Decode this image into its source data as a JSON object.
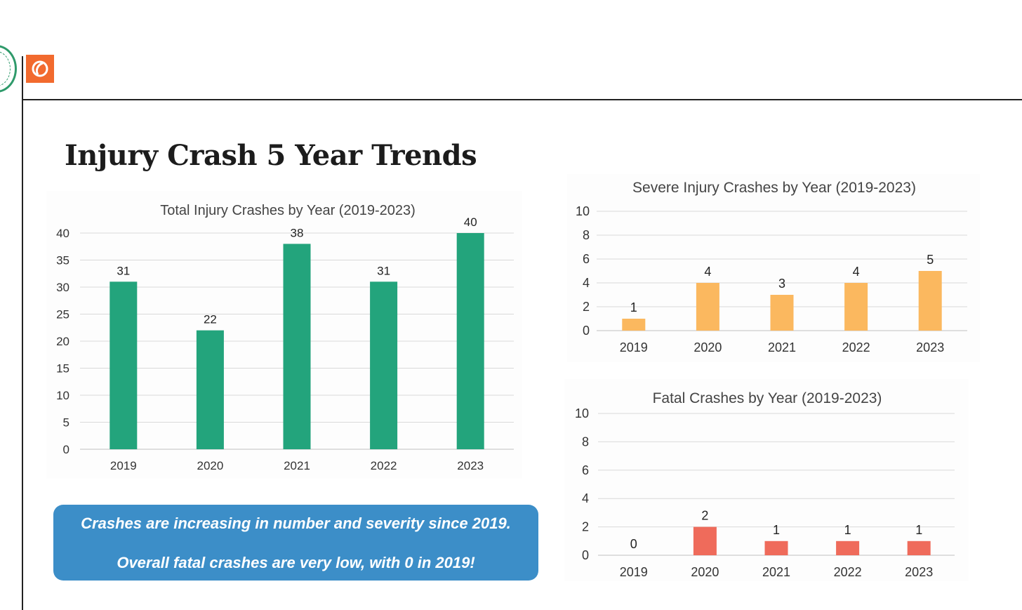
{
  "page": {
    "title": "Injury Crash 5 Year Trends"
  },
  "callout": {
    "line1": "Crashes are increasing in number and severity since 2019.",
    "line2": "Overall fatal crashes are very low, with 0 in 2019!"
  },
  "colors": {
    "total_bar": "#23a47c",
    "severe_bar": "#fbb85f",
    "fatal_bar": "#ef6b5b",
    "callout_bg": "#3c8ec8",
    "badge": "#f26a2e",
    "grid": "#d9d9d9"
  },
  "chart_data": [
    {
      "type": "bar",
      "title": "Total Injury Crashes by Year (2019-2023)",
      "categories": [
        "2019",
        "2020",
        "2021",
        "2022",
        "2023"
      ],
      "values": [
        31,
        22,
        38,
        31,
        40
      ],
      "data_labels": [
        "31",
        "22",
        "38",
        "31",
        "40"
      ],
      "yticks": [
        0,
        5,
        10,
        15,
        20,
        25,
        30,
        35,
        40
      ],
      "ylim": [
        0,
        40
      ],
      "grid": true,
      "legend": "none",
      "color": "#23a47c"
    },
    {
      "type": "bar",
      "title": "Severe Injury Crashes by Year (2019-2023)",
      "categories": [
        "2019",
        "2020",
        "2021",
        "2022",
        "2023"
      ],
      "values": [
        1,
        4,
        3,
        4,
        5
      ],
      "data_labels": [
        "1",
        "4",
        "3",
        "4",
        "5"
      ],
      "yticks": [
        0,
        2,
        4,
        6,
        8,
        10
      ],
      "ylim": [
        0,
        10
      ],
      "grid": true,
      "legend": "none",
      "color": "#fbb85f"
    },
    {
      "type": "bar",
      "title": "Fatal Crashes by Year (2019-2023)",
      "categories": [
        "2019",
        "2020",
        "2021",
        "2022",
        "2023"
      ],
      "values": [
        0,
        2,
        1,
        1,
        1
      ],
      "data_labels": [
        "0",
        "2",
        "1",
        "1",
        "1"
      ],
      "yticks": [
        0,
        2,
        4,
        6,
        8,
        10
      ],
      "ylim": [
        0,
        10
      ],
      "grid": true,
      "legend": "none",
      "color": "#ef6b5b"
    }
  ]
}
